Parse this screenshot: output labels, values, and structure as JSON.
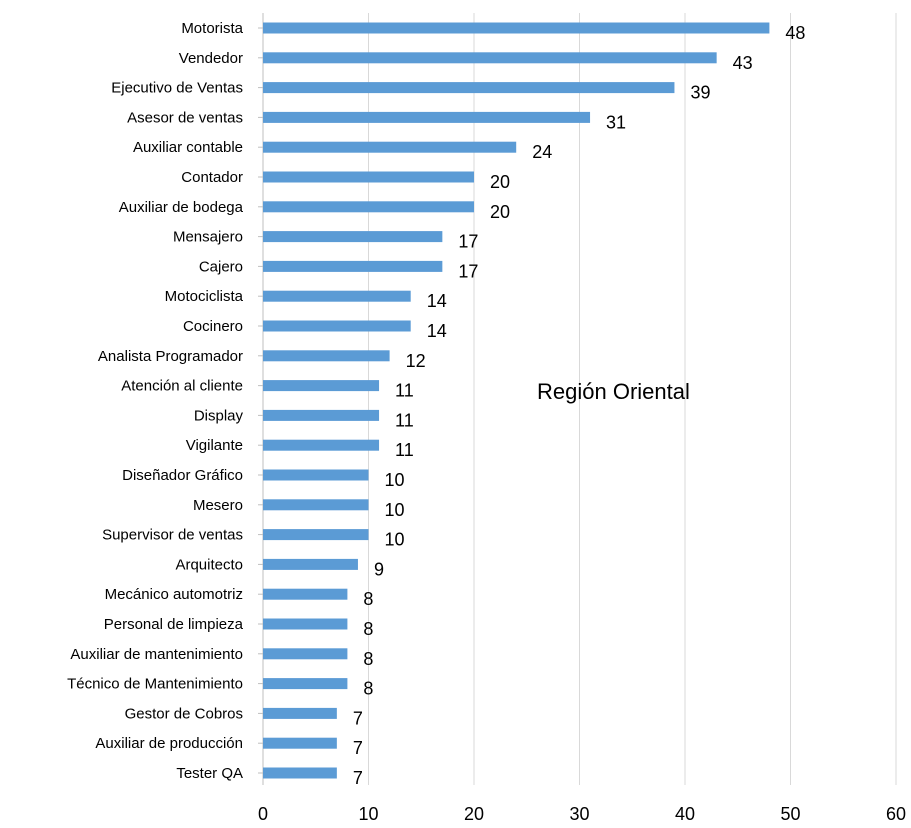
{
  "chart_data": {
    "type": "bar",
    "orientation": "horizontal",
    "title": "",
    "annotation": "Región Oriental",
    "xlabel": "",
    "ylabel": "",
    "xlim": [
      0,
      60
    ],
    "x_ticks": [
      0,
      10,
      20,
      30,
      40,
      50,
      60
    ],
    "grid": true,
    "bar_color": "#5b9bd5",
    "categories": [
      "Motorista",
      "Vendedor",
      "Ejecutivo de Ventas",
      "Asesor de ventas",
      "Auxiliar contable",
      "Contador",
      "Auxiliar de bodega",
      "Mensajero",
      "Cajero",
      "Motociclista",
      "Cocinero",
      "Analista Programador",
      "Atención al cliente",
      "Display",
      "Vigilante",
      "Diseñador Gráfico",
      "Mesero",
      "Supervisor de ventas",
      "Arquitecto",
      "Mecánico automotriz",
      "Personal de limpieza",
      "Auxiliar de mantenimiento",
      "Técnico de Mantenimiento",
      "Gestor de Cobros",
      "Auxiliar de producción",
      "Tester QA"
    ],
    "values": [
      48,
      43,
      39,
      31,
      24,
      20,
      20,
      17,
      17,
      14,
      14,
      12,
      11,
      11,
      11,
      10,
      10,
      10,
      9,
      8,
      8,
      8,
      8,
      7,
      7,
      7
    ]
  }
}
